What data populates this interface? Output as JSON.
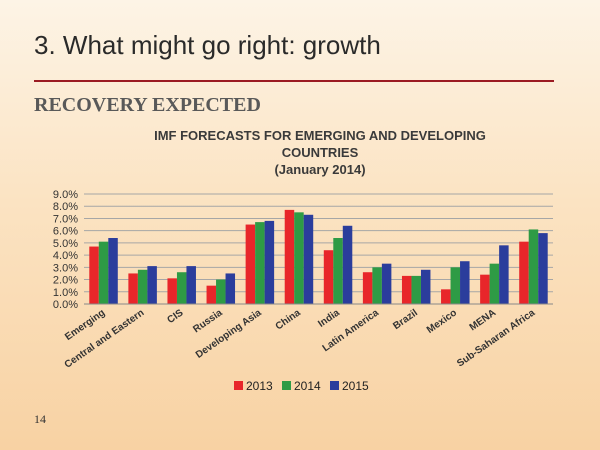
{
  "slide": {
    "title": "3. What might go right: growth",
    "heading": "RECOVERY EXPECTED",
    "page_number": "14",
    "rule_color": "#9b1b22"
  },
  "chart_data": {
    "type": "bar",
    "title_lines": [
      "IMF FORECASTS FOR EMERGING AND DEVELOPING",
      "COUNTRIES",
      "(January 2014)"
    ],
    "categories": [
      "Emerging",
      "Central and Eastern",
      "CIS",
      "Russia",
      "Developing Asia",
      "China",
      "India",
      "Latin America",
      "Brazil",
      "Mexico",
      "MENA",
      "Sub-Saharan Africa"
    ],
    "series": [
      {
        "name": "2013",
        "color": "#e8262a",
        "values": [
          4.7,
          2.5,
          2.1,
          1.5,
          6.5,
          7.7,
          4.4,
          2.6,
          2.3,
          1.2,
          2.4,
          5.1
        ]
      },
      {
        "name": "2014",
        "color": "#2e9b45",
        "values": [
          5.1,
          2.8,
          2.6,
          2.0,
          6.7,
          7.5,
          5.4,
          3.0,
          2.3,
          3.0,
          3.3,
          6.1
        ]
      },
      {
        "name": "2015",
        "color": "#2b3d9c",
        "values": [
          5.4,
          3.1,
          3.1,
          2.5,
          6.8,
          7.3,
          6.4,
          3.3,
          2.8,
          3.5,
          4.8,
          5.8
        ]
      }
    ],
    "ylim": [
      0,
      9
    ],
    "yticks": [
      "0.0%",
      "1.0%",
      "2.0%",
      "3.0%",
      "4.0%",
      "5.0%",
      "6.0%",
      "7.0%",
      "8.0%",
      "9.0%"
    ],
    "grid": true,
    "legend_position": "bottom"
  }
}
